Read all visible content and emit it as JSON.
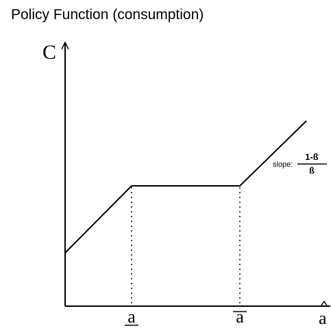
{
  "header": {
    "title": "Policy Function (consumption)"
  },
  "axes": {
    "y_label": "C",
    "x_label": "a"
  },
  "markers": [
    {
      "label": "a"
    },
    {
      "label": "a"
    }
  ],
  "slope_note": {
    "prefix": "slope:",
    "numerator": "1-ß",
    "denominator": "ß"
  }
}
